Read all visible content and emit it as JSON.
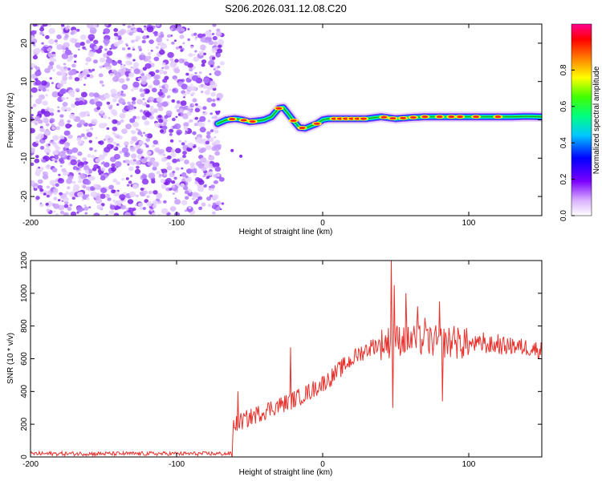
{
  "title": "S206.2026.031.12.08.C20",
  "chart_data": [
    {
      "type": "heatmap",
      "xlabel": "Height of straight line (km)",
      "ylabel": "Frequency (Hz)",
      "xlim": [
        -200,
        150
      ],
      "ylim": [
        -25,
        25
      ],
      "xticks": [
        -200,
        -100,
        0,
        100
      ],
      "yticks": [
        -20,
        -10,
        0,
        10,
        20
      ],
      "noise_region_x": [
        -200,
        -70
      ],
      "ridge": {
        "x": [
          -72,
          -66,
          -60,
          -55,
          -50,
          -45,
          -40,
          -35,
          -30,
          -27,
          -24,
          -20,
          -16,
          -12,
          -8,
          -4,
          0,
          4,
          10,
          20,
          30,
          40,
          50,
          60,
          70,
          80,
          90,
          100,
          110,
          120,
          130,
          140,
          150
        ],
        "freq": [
          -1,
          0,
          0.3,
          0,
          -0.5,
          -0.3,
          0,
          0.8,
          3,
          3.2,
          1.8,
          -0.2,
          -2,
          -2.2,
          -1.6,
          -1,
          0,
          0.3,
          0.3,
          0.3,
          0.3,
          0.8,
          0.3,
          0.6,
          0.8,
          0.8,
          0.8,
          0.8,
          0.8,
          0.8,
          0.8,
          0.9,
          0.8
        ]
      },
      "colorbar": {
        "label": "Normalized spectral amplitude",
        "range": [
          0,
          1
        ],
        "ticks": [
          "0.0",
          "0.2",
          "0.4",
          "0.6",
          "0.8"
        ]
      }
    },
    {
      "type": "line",
      "xlabel": "Height of straight line (km)",
      "ylabel": "SNR (10 * v/v)",
      "xlim": [
        -200,
        150
      ],
      "ylim": [
        0,
        1200
      ],
      "xticks": [
        -200,
        -100,
        0,
        100
      ],
      "yticks": [
        0,
        200,
        400,
        600,
        800,
        1000,
        1200
      ],
      "color": "#e8322d",
      "trend": {
        "x": [
          -200,
          -62,
          -61,
          -55,
          -45,
          -35,
          -25,
          -15,
          -5,
          5,
          15,
          25,
          35,
          45,
          55,
          70,
          85,
          100,
          120,
          140,
          150
        ],
        "y": [
          20,
          20,
          200,
          220,
          260,
          300,
          330,
          370,
          420,
          480,
          560,
          630,
          680,
          700,
          720,
          710,
          700,
          690,
          680,
          670,
          650
        ]
      },
      "spikes": {
        "x": [
          -58,
          -22,
          47,
          48,
          49,
          57,
          62,
          65,
          70,
          80,
          82,
          90,
          97,
          110,
          120,
          130
        ],
        "y": [
          400,
          670,
          1200,
          300,
          1050,
          1000,
          750,
          920,
          850,
          950,
          340,
          800,
          780,
          760,
          750,
          720
        ]
      }
    }
  ]
}
